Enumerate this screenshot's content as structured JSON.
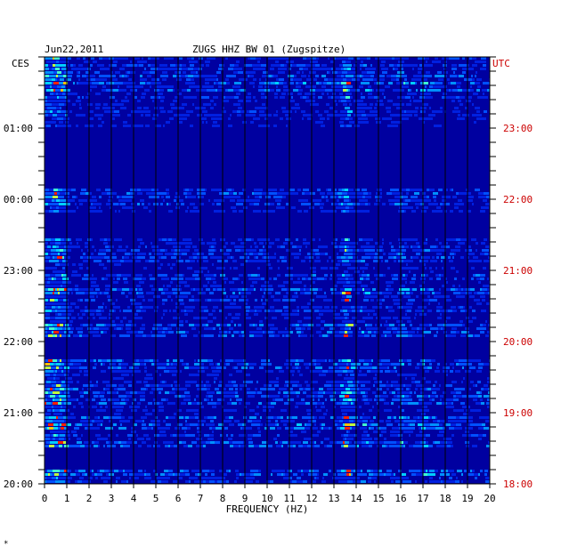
{
  "chart_data": {
    "type": "heatmap",
    "header": {
      "date": "Jun22,2011",
      "station": "ZUGS HHZ BW 01 (Zugspitze)"
    },
    "left_axis_tz": "CES",
    "right_axis_tz": "UTC",
    "xlabel": "FREQUENCY (HZ)",
    "xlim": [
      0,
      20
    ],
    "x_ticks": [
      "0",
      "1",
      "2",
      "3",
      "4",
      "5",
      "6",
      "7",
      "8",
      "9",
      "10",
      "11",
      "12",
      "13",
      "14",
      "15",
      "16",
      "17",
      "18",
      "19",
      "20"
    ],
    "y_ticks_left": [
      "01:00",
      "00:00",
      "23:00",
      "22:00",
      "21:00",
      "20:00"
    ],
    "y_ticks_right": [
      "23:00",
      "22:00",
      "21:00",
      "20:00",
      "19:00",
      "18:00"
    ],
    "colors": {
      "background_low": "#0000a0",
      "mid": "#0066ff",
      "high": "#00ffff",
      "peak": "#ff0000",
      "right_axis_text": "#cc0000"
    },
    "band_peaks_hz": [
      0.4,
      13.5,
      14.3,
      16.0,
      17.0
    ],
    "footnote": "*"
  }
}
